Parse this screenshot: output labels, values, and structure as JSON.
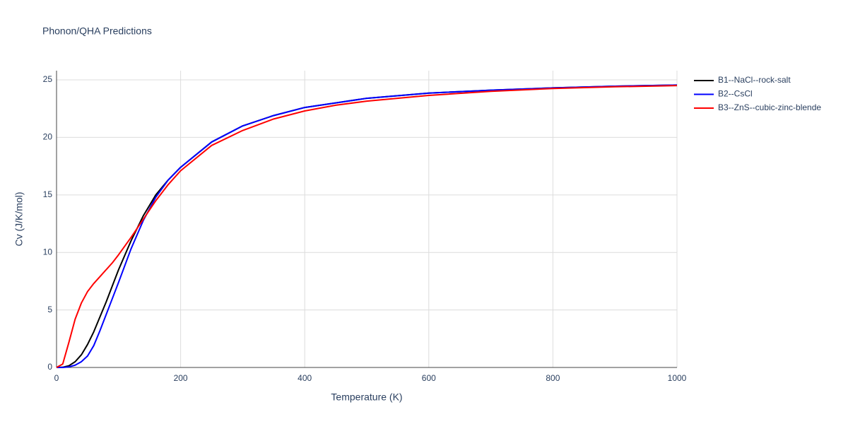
{
  "chart_data": {
    "type": "line",
    "title": "Phonon/QHA Predictions",
    "x_label": "Temperature (K)",
    "y_label": "Cv (J/K/mol)",
    "x": [
      0,
      10,
      20,
      30,
      40,
      50,
      60,
      70,
      80,
      90,
      100,
      120,
      140,
      160,
      180,
      200,
      250,
      300,
      350,
      400,
      450,
      500,
      600,
      700,
      800,
      900,
      1000
    ],
    "series": [
      {
        "name": "B1--NaCl--rock-salt",
        "color": "#000000",
        "values": [
          0,
          0.02,
          0.15,
          0.5,
          1.1,
          2.0,
          3.1,
          4.4,
          5.7,
          7.1,
          8.5,
          11.0,
          13.2,
          15.0,
          16.3,
          17.4,
          19.6,
          21.0,
          21.9,
          22.6,
          23.0,
          23.4,
          23.85,
          24.1,
          24.3,
          24.45,
          24.55
        ]
      },
      {
        "name": "B2--CsCl",
        "color": "#0000ff",
        "values": [
          0,
          0,
          0.05,
          0.2,
          0.5,
          1.0,
          1.9,
          3.2,
          4.6,
          6.0,
          7.4,
          10.3,
          12.8,
          14.8,
          16.3,
          17.4,
          19.6,
          21.0,
          21.9,
          22.6,
          23.0,
          23.4,
          23.85,
          24.1,
          24.3,
          24.45,
          24.55
        ]
      },
      {
        "name": "B3--ZnS--cubic-zinc-blende",
        "color": "#ff0000",
        "values": [
          0,
          0.3,
          2.2,
          4.2,
          5.6,
          6.6,
          7.3,
          7.9,
          8.5,
          9.1,
          9.8,
          11.3,
          12.9,
          14.5,
          15.9,
          17.1,
          19.3,
          20.6,
          21.6,
          22.3,
          22.8,
          23.15,
          23.65,
          24.0,
          24.25,
          24.4,
          24.5
        ]
      }
    ],
    "xlim": [
      0,
      1000
    ],
    "xticks": [
      0,
      200,
      400,
      600,
      800,
      1000
    ],
    "ylim": [
      0,
      25.8
    ],
    "yticks": [
      0,
      5,
      10,
      15,
      20,
      25
    ],
    "grid": true,
    "legend": "right"
  }
}
